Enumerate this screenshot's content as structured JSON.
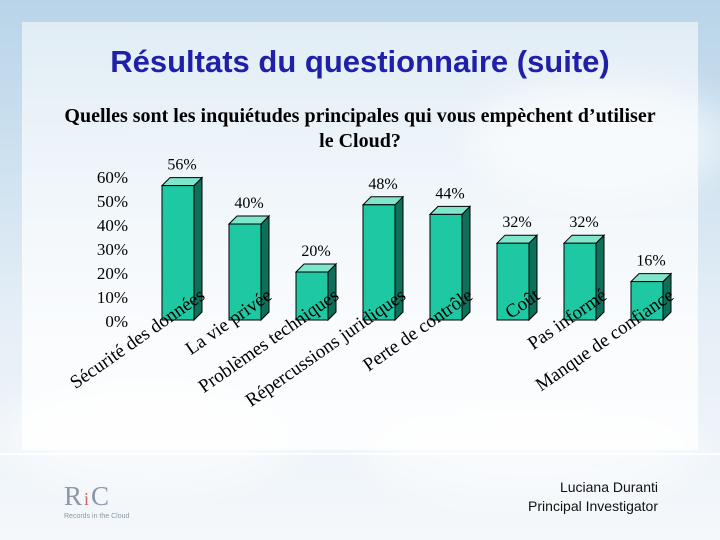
{
  "slide": {
    "title": "Résultats du questionnaire (suite)",
    "subtitle": "Quelles sont les inquiétudes principales qui vous empèchent d’utiliser le Cloud?",
    "author_name": "Luciana Duranti",
    "author_role": "Principal Investigator",
    "logo": {
      "mark_r": "R",
      "mark_i": "i",
      "mark_c": "C",
      "tagline": "Records in the Cloud"
    }
  },
  "chart_data": {
    "type": "bar",
    "title": "Quelles sont les inquiétudes principales qui vous empèchent d’utiliser le Cloud?",
    "categories": [
      "Sécurité des données",
      "La vie privée",
      "Problèmes techniques",
      "Répercussions juridiques",
      "Perte de contrôle",
      "Coût",
      "Pas informé",
      "Manque de confiance"
    ],
    "values": [
      56,
      40,
      20,
      48,
      44,
      32,
      32,
      16
    ],
    "value_labels": [
      "56%",
      "40%",
      "20%",
      "48%",
      "44%",
      "32%",
      "32%",
      "16%"
    ],
    "y_ticks": [
      "0%",
      "10%",
      "20%",
      "30%",
      "40%",
      "50%",
      "60%"
    ],
    "ylim": [
      0,
      60
    ],
    "grid": false,
    "legend": "none",
    "colors": {
      "bar_front": "#1ec8a2",
      "bar_side": "#0e6f5a",
      "bar_top": "#7fe6cc",
      "bar_edge": "#000000"
    }
  }
}
